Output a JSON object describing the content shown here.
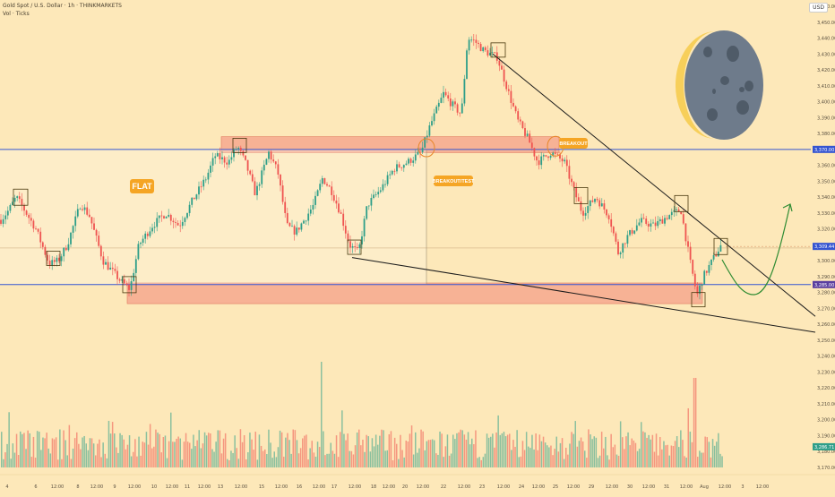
{
  "header": {
    "title": "Gold Spot / U.S. Dollar · 1h · THINKMARKETS",
    "subtitle": "Vol · Ticks",
    "currency": "USD"
  },
  "annotations": {
    "flat": "FLAT",
    "breakout_test": "BREAKOUT/TEST",
    "breakout": "BREAKOUT"
  },
  "colors": {
    "bg": "#fde8b9",
    "up": "#2e9e89",
    "down": "#ef5350",
    "zone": "#f4a08a",
    "level": "#3454d1",
    "label": "#f5a524",
    "trend": "#1b1b1b",
    "arrow": "#2f8c33",
    "moon": "#6e7b8b"
  },
  "chart_data": {
    "type": "candlestick",
    "ylim": [
      3170,
      3460
    ],
    "ylabels": [
      "3,460.00",
      "3,450.00",
      "3,440.00",
      "3,430.00",
      "3,420.00",
      "3,410.00",
      "3,400.00",
      "3,390.00",
      "3,380.00",
      "3,370.00",
      "3,360.00",
      "3,350.00",
      "3,340.00",
      "3,330.00",
      "3,320.00",
      "3,310.00",
      "3,300.00",
      "3,290.00",
      "3,280.00",
      "3,270.00",
      "3,260.00",
      "3,250.00",
      "3,240.00",
      "3,230.00",
      "3,220.00",
      "3,210.00",
      "3,200.00",
      "3,190.00",
      "3,180.00",
      "3,170.00"
    ],
    "xlabels": [
      "4",
      "6",
      "12:00",
      "8",
      "12:00",
      "9",
      "12:00",
      "10",
      "12:00",
      "11",
      "12:00",
      "13",
      "12:00",
      "15",
      "12:00",
      "16",
      "12:00",
      "17",
      "12:00",
      "18",
      "12:00",
      "20",
      "12:00",
      "22",
      "12:00",
      "23",
      "12:00",
      "24",
      "12:00",
      "25",
      "12:00",
      "29",
      "12:00",
      "30",
      "12:00",
      "31",
      "12:00",
      "Aug",
      "12:00",
      "3",
      "12:00"
    ],
    "price_tags": [
      {
        "label": "3,370.00",
        "kind": "level"
      },
      {
        "label": "3,309.44",
        "kind": "price"
      },
      {
        "label": "3,285.00",
        "kind": "support"
      },
      {
        "label": "3,286.71",
        "kind": "volume"
      }
    ],
    "levels": {
      "resistance": 3370,
      "support": 3285,
      "range_mid": 3308
    },
    "zones": [
      [
        3368,
        3378
      ],
      [
        3273,
        3286
      ]
    ],
    "path": [
      [
        0,
        3325
      ],
      [
        10,
        3332
      ],
      [
        18,
        3340
      ],
      [
        25,
        3334
      ],
      [
        40,
        3320
      ],
      [
        55,
        3298
      ],
      [
        65,
        3300
      ],
      [
        75,
        3310
      ],
      [
        90,
        3336
      ],
      [
        100,
        3328
      ],
      [
        115,
        3300
      ],
      [
        135,
        3287
      ],
      [
        145,
        3282
      ],
      [
        155,
        3310
      ],
      [
        170,
        3322
      ],
      [
        185,
        3330
      ],
      [
        200,
        3322
      ],
      [
        215,
        3338
      ],
      [
        230,
        3352
      ],
      [
        240,
        3366
      ],
      [
        255,
        3362
      ],
      [
        265,
        3372
      ],
      [
        275,
        3360
      ],
      [
        285,
        3342
      ],
      [
        300,
        3368
      ],
      [
        310,
        3356
      ],
      [
        320,
        3322
      ],
      [
        330,
        3318
      ],
      [
        340,
        3326
      ],
      [
        350,
        3335
      ],
      [
        360,
        3352
      ],
      [
        370,
        3344
      ],
      [
        380,
        3330
      ],
      [
        390,
        3310
      ],
      [
        400,
        3305
      ],
      [
        410,
        3335
      ],
      [
        425,
        3345
      ],
      [
        440,
        3358
      ],
      [
        455,
        3362
      ],
      [
        470,
        3368
      ],
      [
        480,
        3385
      ],
      [
        495,
        3405
      ],
      [
        505,
        3398
      ],
      [
        515,
        3392
      ],
      [
        522,
        3440
      ],
      [
        530,
        3438
      ],
      [
        540,
        3432
      ],
      [
        555,
        3428
      ],
      [
        568,
        3405
      ],
      [
        578,
        3388
      ],
      [
        590,
        3376
      ],
      [
        600,
        3362
      ],
      [
        615,
        3368
      ],
      [
        630,
        3362
      ],
      [
        640,
        3345
      ],
      [
        650,
        3330
      ],
      [
        665,
        3340
      ],
      [
        680,
        3328
      ],
      [
        690,
        3305
      ],
      [
        700,
        3315
      ],
      [
        715,
        3325
      ],
      [
        730,
        3322
      ],
      [
        745,
        3328
      ],
      [
        760,
        3332
      ],
      [
        770,
        3300
      ],
      [
        778,
        3278
      ],
      [
        785,
        3290
      ],
      [
        795,
        3300
      ],
      [
        805,
        3310
      ]
    ],
    "volume_range": [
      0,
      55
    ]
  }
}
